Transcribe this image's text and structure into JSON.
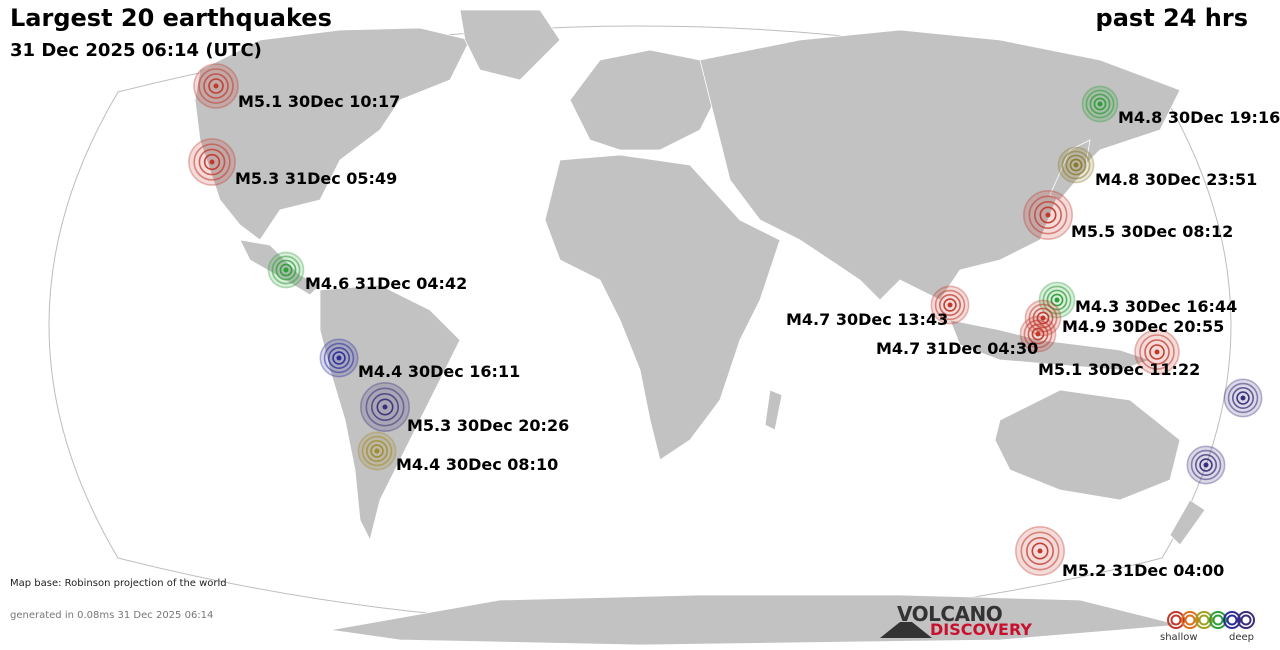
{
  "header": {
    "title": "Largest 20 earthquakes",
    "subtitle": "31 Dec 2025 06:14 (UTC)",
    "period": "past 24 hrs"
  },
  "quakes": [
    {
      "label": "M5.1 30Dec 10:17",
      "color": "#c0392b"
    },
    {
      "label": "M5.3 31Dec 05:49",
      "color": "#c0392b"
    },
    {
      "label": "M4.6 31Dec 04:42",
      "color": "#2e9e3a"
    },
    {
      "label": "M4.4 30Dec 16:11",
      "color": "#2b2b9e"
    },
    {
      "label": "M5.3 30Dec 20:26",
      "color": "#3a2f7a"
    },
    {
      "label": "M4.4 30Dec 08:10",
      "color": "#a08a2a"
    },
    {
      "label": "M4.8 30Dec 19:16",
      "color": "#2e9e3a"
    },
    {
      "label": "M4.8 30Dec 23:51",
      "color": "#8a7a2a"
    },
    {
      "label": "M5.5 30Dec 08:12",
      "color": "#c0392b"
    },
    {
      "label": "M4.3 30Dec 16:44",
      "color": "#2e9e3a"
    },
    {
      "label": "M4.9 30Dec 20:55",
      "color": "#c0392b"
    },
    {
      "label": "M4.7 30Dec 13:43",
      "color": "#c0392b"
    },
    {
      "label": "M4.7 31Dec 04:30",
      "color": "#c0392b"
    },
    {
      "label": "M5.1 30Dec 11:22",
      "color": "#c0392b"
    },
    {
      "label": "",
      "color": "#3a2f7a"
    },
    {
      "label": "",
      "color": "#3a2f7a"
    },
    {
      "label": "M5.2 31Dec 04:00",
      "color": "#c0392b"
    }
  ],
  "footer": {
    "map_base": "Map base: Robinson projection of the world",
    "generated": "generated in 0.08ms 31 Dec 2025 06:14",
    "brand_top": "VOLCANO",
    "brand_bottom": "DISCOVERY"
  },
  "legend": {
    "shallow_label": "shallow",
    "deep_label": "deep",
    "depth_colors": [
      "#c0392b",
      "#e07020",
      "#a0a020",
      "#2e9e3a",
      "#2b2b9e",
      "#3a2f7a"
    ]
  },
  "colors": {
    "land": "#c2c2c2",
    "ocean": "#ffffff",
    "outline": "#bdbdbd"
  }
}
